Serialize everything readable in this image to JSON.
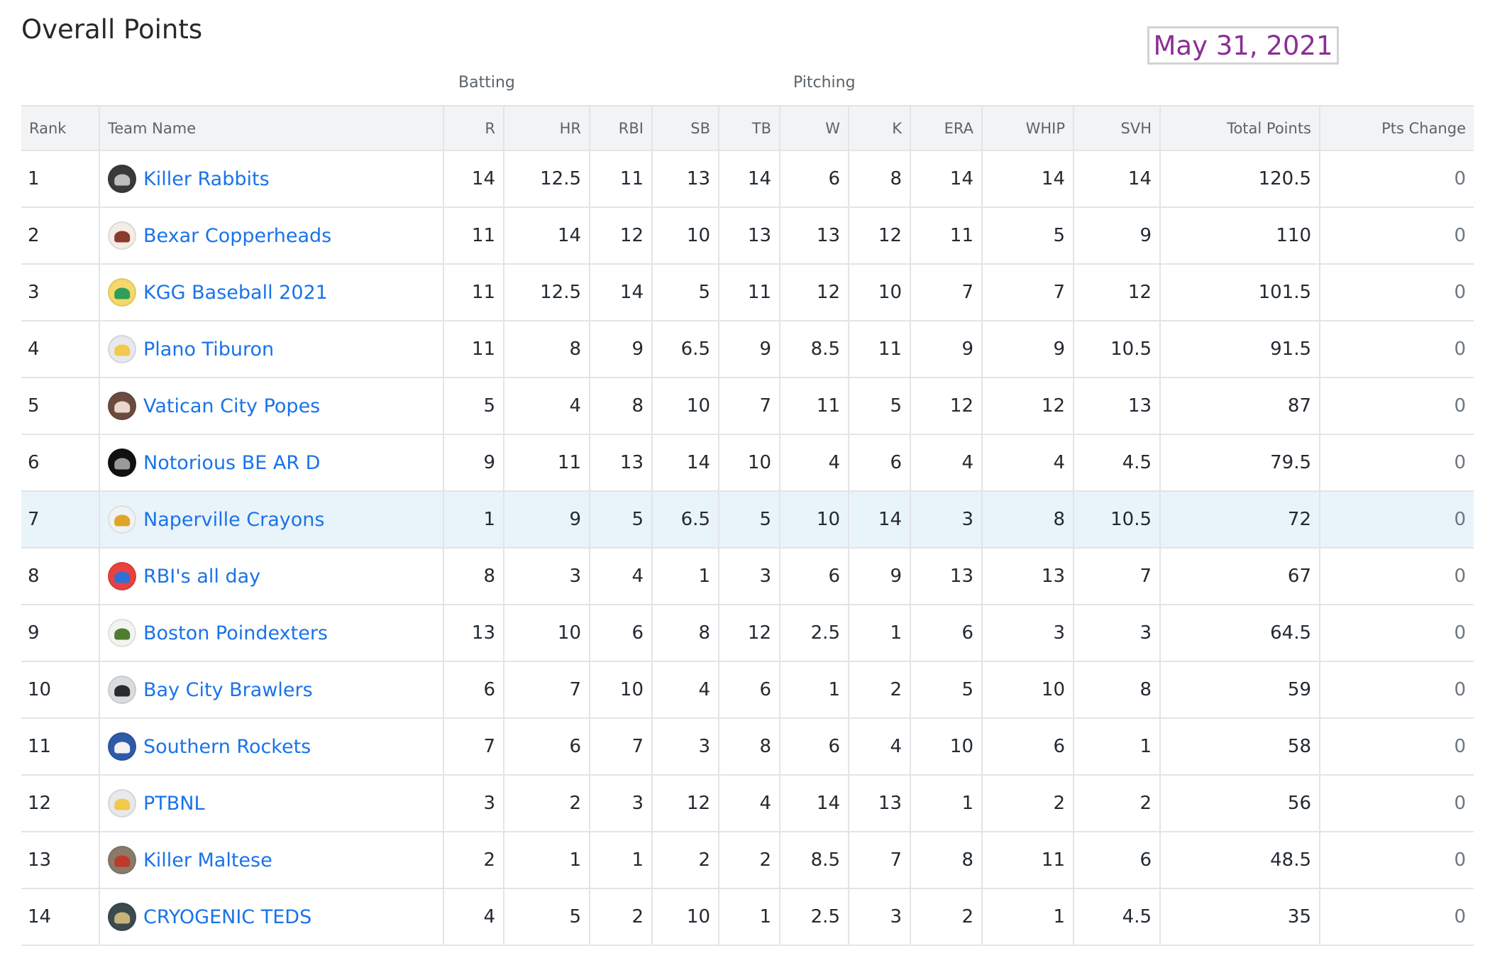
{
  "page": {
    "title": "Overall Points",
    "date": "May 31, 2021"
  },
  "groups": {
    "batting": "Batting",
    "pitching": "Pitching"
  },
  "columns": {
    "rank": "Rank",
    "team": "Team Name",
    "r": "R",
    "hr": "HR",
    "rbi": "RBI",
    "sb": "SB",
    "tb": "TB",
    "w": "W",
    "k": "K",
    "era": "ERA",
    "whip": "WHIP",
    "svh": "SVH",
    "total": "Total Points",
    "change": "Pts Change"
  },
  "colors": {
    "link": "#1a73e8",
    "date": "#8a2f95",
    "highlight_row": "#e9f3fa",
    "header_bg": "#f2f3f4"
  },
  "highlighted_rank": "7",
  "teams": [
    {
      "rank": "1",
      "name": "Killer Rabbits",
      "logo": "rabbit-logo-icon",
      "logo_color": "#3a3a3a",
      "logo_inner": "#bdbdbd",
      "r": "14",
      "hr": "12.5",
      "rbi": "11",
      "sb": "13",
      "tb": "14",
      "w": "6",
      "k": "8",
      "era": "14",
      "whip": "14",
      "svh": "14",
      "total": "120.5",
      "change": "0"
    },
    {
      "rank": "2",
      "name": "Bexar Copperheads",
      "logo": "snake-logo-icon",
      "logo_color": "#f4ece6",
      "logo_inner": "#8b3a2e",
      "r": "11",
      "hr": "14",
      "rbi": "12",
      "sb": "10",
      "tb": "13",
      "w": "13",
      "k": "12",
      "era": "11",
      "whip": "5",
      "svh": "9",
      "total": "110",
      "change": "0"
    },
    {
      "rank": "3",
      "name": "KGG Baseball 2021",
      "logo": "green-cap-icon",
      "logo_color": "#f5d86a",
      "logo_inner": "#2f9e5a",
      "r": "11",
      "hr": "12.5",
      "rbi": "14",
      "sb": "5",
      "tb": "11",
      "w": "12",
      "k": "10",
      "era": "7",
      "whip": "7",
      "svh": "12",
      "total": "101.5",
      "change": "0"
    },
    {
      "rank": "4",
      "name": "Plano Tiburon",
      "logo": "gold-cap-icon",
      "logo_color": "#e7e9ec",
      "logo_inner": "#f2c94c",
      "r": "11",
      "hr": "8",
      "rbi": "9",
      "sb": "6.5",
      "tb": "9",
      "w": "8.5",
      "k": "11",
      "era": "9",
      "whip": "9",
      "svh": "10.5",
      "total": "91.5",
      "change": "0"
    },
    {
      "rank": "5",
      "name": "Vatican City Popes",
      "logo": "pope-photo-icon",
      "logo_color": "#6b4b3e",
      "logo_inner": "#e8d7cc",
      "r": "5",
      "hr": "4",
      "rbi": "8",
      "sb": "10",
      "tb": "7",
      "w": "11",
      "k": "5",
      "era": "12",
      "whip": "12",
      "svh": "13",
      "total": "87",
      "change": "0"
    },
    {
      "rank": "6",
      "name": "Notorious BE AR D",
      "logo": "bear-emblem-icon",
      "logo_color": "#111111",
      "logo_inner": "#9a9a9a",
      "r": "9",
      "hr": "11",
      "rbi": "13",
      "sb": "14",
      "tb": "10",
      "w": "4",
      "k": "6",
      "era": "4",
      "whip": "4",
      "svh": "4.5",
      "total": "79.5",
      "change": "0"
    },
    {
      "rank": "7",
      "name": "Naperville Crayons",
      "logo": "crayon-box-icon",
      "logo_color": "#f0f2f4",
      "logo_inner": "#e0a526",
      "r": "1",
      "hr": "9",
      "rbi": "5",
      "sb": "6.5",
      "tb": "5",
      "w": "10",
      "k": "14",
      "era": "3",
      "whip": "8",
      "svh": "10.5",
      "total": "72",
      "change": "0"
    },
    {
      "rank": "8",
      "name": "RBI's all day",
      "logo": "blue-cap-icon",
      "logo_color": "#e8423f",
      "logo_inner": "#2f6fd6",
      "r": "8",
      "hr": "3",
      "rbi": "4",
      "sb": "1",
      "tb": "3",
      "w": "6",
      "k": "9",
      "era": "13",
      "whip": "13",
      "svh": "7",
      "total": "67",
      "change": "0"
    },
    {
      "rank": "9",
      "name": "Boston Poindexters",
      "logo": "gator-logo-icon",
      "logo_color": "#f2f4ef",
      "logo_inner": "#4e7d2f",
      "r": "13",
      "hr": "10",
      "rbi": "6",
      "sb": "8",
      "tb": "12",
      "w": "2.5",
      "k": "1",
      "era": "6",
      "whip": "3",
      "svh": "3",
      "total": "64.5",
      "change": "0"
    },
    {
      "rank": "10",
      "name": "Bay City Brawlers",
      "logo": "dog-photo-icon",
      "logo_color": "#d9dde0",
      "logo_inner": "#2b2b2b",
      "r": "6",
      "hr": "7",
      "rbi": "10",
      "sb": "4",
      "tb": "6",
      "w": "1",
      "k": "2",
      "era": "5",
      "whip": "10",
      "svh": "8",
      "total": "59",
      "change": "0"
    },
    {
      "rank": "11",
      "name": "Southern Rockets",
      "logo": "rocket-logo-icon",
      "logo_color": "#2e5aa8",
      "logo_inner": "#f2f2f2",
      "r": "7",
      "hr": "6",
      "rbi": "7",
      "sb": "3",
      "tb": "8",
      "w": "6",
      "k": "4",
      "era": "10",
      "whip": "6",
      "svh": "1",
      "total": "58",
      "change": "0"
    },
    {
      "rank": "12",
      "name": "PTBNL",
      "logo": "gold-cap-icon",
      "logo_color": "#e7e9ec",
      "logo_inner": "#f2c94c",
      "r": "3",
      "hr": "2",
      "rbi": "3",
      "sb": "12",
      "tb": "4",
      "w": "14",
      "k": "13",
      "era": "1",
      "whip": "2",
      "svh": "2",
      "total": "56",
      "change": "0"
    },
    {
      "rank": "13",
      "name": "Killer Maltese",
      "logo": "maltese-photo-icon",
      "logo_color": "#8a7a6a",
      "logo_inner": "#c0392b",
      "r": "2",
      "hr": "1",
      "rbi": "1",
      "sb": "2",
      "tb": "2",
      "w": "8.5",
      "k": "7",
      "era": "8",
      "whip": "11",
      "svh": "6",
      "total": "48.5",
      "change": "0"
    },
    {
      "rank": "14",
      "name": "CRYOGENIC TEDS",
      "logo": "cryo-jar-icon",
      "logo_color": "#3b4a4f",
      "logo_inner": "#c9b27a",
      "r": "4",
      "hr": "5",
      "rbi": "2",
      "sb": "10",
      "tb": "1",
      "w": "2.5",
      "k": "3",
      "era": "2",
      "whip": "1",
      "svh": "4.5",
      "total": "35",
      "change": "0"
    }
  ]
}
